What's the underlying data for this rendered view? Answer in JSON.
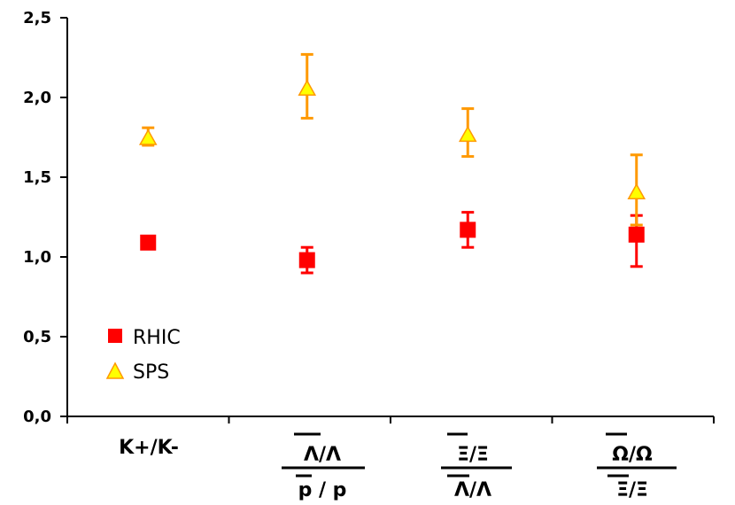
{
  "chart_data": {
    "type": "scatter",
    "title": "",
    "xlabel": "",
    "ylabel": "",
    "ylim": [
      0,
      2.5
    ],
    "yticks": [
      "0,0",
      "0,5",
      "1,0",
      "1,5",
      "2,0",
      "2,5"
    ],
    "categories": [
      {
        "label": "K+/K-"
      },
      {
        "numerator": "Λ/Λ",
        "denominator": "p / p"
      },
      {
        "numerator": "Ξ/Ξ",
        "denominator": "Λ/Λ"
      },
      {
        "numerator": "Ω/Ω",
        "denominator": "Ξ/Ξ"
      }
    ],
    "grid": false,
    "legend_position": "bottom-left",
    "series": [
      {
        "name": "RHIC",
        "marker": "square",
        "color": "#ff0000",
        "values": [
          1.09,
          0.98,
          1.17,
          1.14
        ],
        "err_low": [
          null,
          0.08,
          0.11,
          0.2
        ],
        "err_high": [
          null,
          0.08,
          0.11,
          0.12
        ]
      },
      {
        "name": "SPS",
        "marker": "triangle",
        "color": "#ffff00",
        "edge_color": "#ff9900",
        "values": [
          1.75,
          2.06,
          1.77,
          1.41
        ],
        "err_low": [
          0.05,
          0.19,
          0.14,
          0.21
        ],
        "err_high": [
          0.06,
          0.21,
          0.16,
          0.23
        ]
      }
    ]
  }
}
